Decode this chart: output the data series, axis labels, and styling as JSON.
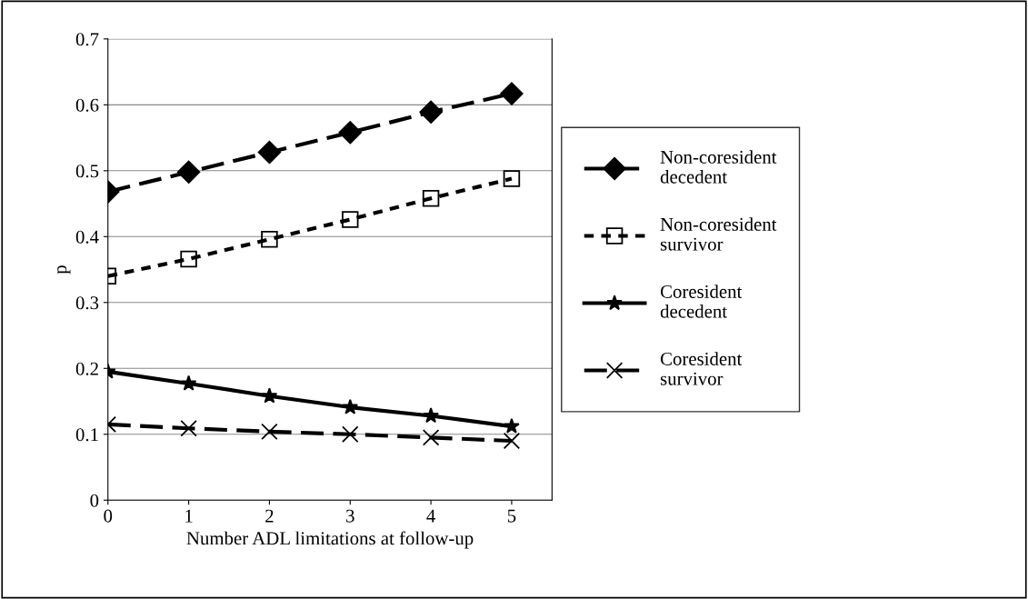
{
  "chart_data": {
    "type": "line",
    "xlabel": "Number ADL limitations at follow-up",
    "ylabel": "p",
    "categories": [
      "0",
      "1",
      "2",
      "3",
      "4",
      "5"
    ],
    "ylim": [
      0,
      0.7
    ],
    "yticks": [
      0,
      0.1,
      0.2,
      0.3,
      0.4,
      0.5,
      0.6,
      0.7
    ],
    "grid": "y",
    "legend": "right",
    "series": [
      {
        "name": "Non-coresident\ndecedent",
        "color": "#000000",
        "marker": "diamond",
        "line_style": "dashed",
        "values": [
          0.468,
          0.498,
          0.528,
          0.558,
          0.589,
          0.617
        ]
      },
      {
        "name": "Non-coresident\nsurvivor",
        "color": "#000000",
        "marker": "square",
        "line_style": "dotted",
        "values": [
          0.34,
          0.366,
          0.396,
          0.426,
          0.458,
          0.488
        ]
      },
      {
        "name": "Coresident\ndecedent",
        "color": "#000000",
        "marker": "star",
        "line_style": "solid",
        "values": [
          0.195,
          0.177,
          0.158,
          0.141,
          0.128,
          0.112
        ]
      },
      {
        "name": "Coresident\nsurvivor",
        "color": "#000000",
        "marker": "cross",
        "line_style": "dashed",
        "values": [
          0.115,
          0.109,
          0.104,
          0.1,
          0.095,
          0.09
        ]
      }
    ]
  }
}
